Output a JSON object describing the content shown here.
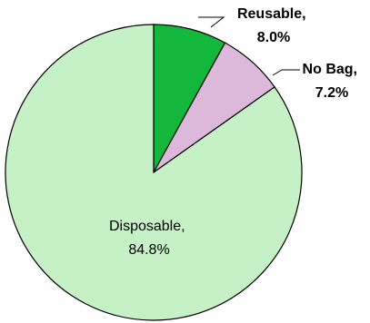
{
  "chart_data": {
    "type": "pie",
    "slices": [
      {
        "category": "Reusable",
        "value": 8.0,
        "label_line1": "Reusable,",
        "label_line2": "8.0%",
        "color": "#13b73c"
      },
      {
        "category": "No Bag",
        "value": 7.2,
        "label_line1": "No Bag,",
        "label_line2": "7.2%",
        "color": "#dcb9da"
      },
      {
        "category": "Disposable",
        "value": 84.8,
        "label_line1": "Disposable,",
        "label_line2": "84.8%",
        "color": "#c6f0c6"
      }
    ],
    "start_angle": "12 o'clock",
    "direction": "clockwise",
    "title": "",
    "legend": "none"
  }
}
